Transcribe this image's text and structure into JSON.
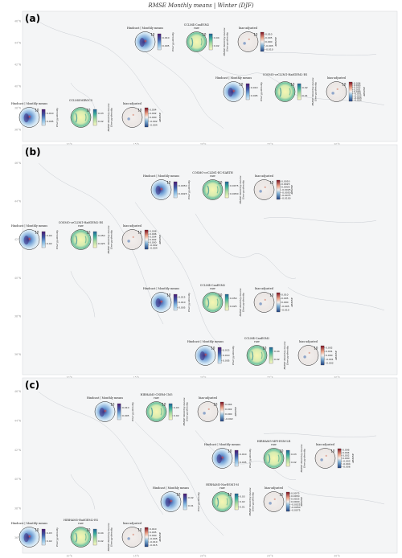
{
  "figure_title": "RMSE Monthly means | Winter (DJF)",
  "colors": {
    "map_bg": "#f4f5f6",
    "coast": "#c9cdd2",
    "frame": "#d9dcdf",
    "marker": "#e0453a"
  },
  "chart_data": {
    "type": "map",
    "panels": [
      {
        "label": "(a)",
        "lat_ticks": [
          "46°N",
          "44°N",
          "42°N",
          "40°N",
          "38°N",
          "36°N"
        ],
        "lon_ticks": [
          "10°E",
          "15°E",
          "20°E",
          "25°E",
          "30°E"
        ],
        "groups": [
          {
            "model": "CCLM4-CanESM2",
            "model_caption": "CCLM4-CanESM2",
            "raw_caption": "raw",
            "hindcast_caption": "Hindcast | Monthly means",
            "bias_caption": "bias-adjusted",
            "hindcast_ticks": [
              "0.010",
              "0.005"
            ],
            "raw_ticks": [
              "0.04",
              "0.02"
            ],
            "bias_ticks": [
              "0.010",
              "0.005",
              "0.000",
              "-0.005",
              "-0.010"
            ]
          },
          {
            "model": "COSMO-crCLIM1-HadGEM2-ES",
            "model_caption": "COSMO-crCLIM1-HadGEM2-ES",
            "raw_caption": "",
            "hindcast_caption": "Hindcast | Monthly means",
            "bias_caption": "bias-adjusted",
            "hindcast_ticks": [
              "0.010",
              "0.005"
            ],
            "raw_ticks": [
              "0.02",
              "0.01"
            ],
            "bias_ticks": [
              "0.004",
              "0.003",
              "0.002",
              "0.001",
              "0.000",
              "-0.001",
              "-0.002",
              "-0.003",
              "-0.004"
            ]
          },
          {
            "model": "CCLM4-MIROC5",
            "model_caption": "CCLM4-MIROC5",
            "raw_caption": "",
            "hindcast_caption": "Hindcast | Monthly means",
            "bias_caption": "bias-adjusted",
            "hindcast_ticks": [
              "0.010",
              "0.005"
            ],
            "raw_ticks": [
              "0.03",
              "0.02"
            ],
            "bias_ticks": [
              "0.004",
              "0.002",
              "0.000",
              "-0.002",
              "-0.004"
            ]
          }
        ]
      },
      {
        "label": "(b)",
        "lat_ticks": [
          "46°N",
          "44°N",
          "42°N",
          "40°N",
          "38°N",
          "36°N"
        ],
        "lon_ticks": [
          "10°E",
          "15°E",
          "20°E",
          "25°E",
          "30°E"
        ],
        "groups": [
          {
            "model": "COSMO-crCLIM1-EC-EARTH",
            "model_caption": "COSMO-crCLIM1-EC-EARTH",
            "raw_caption": "raw",
            "hindcast_caption": "Hindcast | Monthly means",
            "bias_caption": "bias-adjusted",
            "hindcast_ticks": [
              "0.0050",
              "0.0025"
            ],
            "raw_ticks": [
              "0.0075",
              "0.0050"
            ],
            "bias_ticks": [
              "0.0050",
              "0.0025",
              "0.0000",
              "-0.0025",
              "-0.0050",
              "-0.0075",
              "-0.0100"
            ]
          },
          {
            "model": "COSMO-crCLIM1-HadGEM2-ES",
            "model_caption": "COSMO-crCLIM1-HadGEM2-ES",
            "raw_caption": "raw",
            "hindcast_caption": "Hindcast | Monthly means",
            "bias_caption": "bias-adjusted",
            "hindcast_ticks": [
              "0.04",
              "0.02"
            ],
            "raw_ticks": [
              "0.050",
              "0.025"
            ],
            "bias_ticks": [
              "0.008",
              "0.006",
              "0.004",
              "0.002",
              "0.000",
              "-0.002",
              "-0.004"
            ]
          },
          {
            "model": "CCLM4-CanESM2",
            "model_caption": "CCLM4-CanESM2",
            "raw_caption": "raw",
            "hindcast_caption": "Hindcast | Monthly means",
            "bias_caption": "bias-adjusted",
            "hindcast_ticks": [
              "0.015",
              "0.010",
              "0.005"
            ],
            "raw_ticks": [
              "0.050",
              "0.025"
            ],
            "bias_ticks": [
              "0.010",
              "0.005",
              "0.000",
              "-0.005",
              "-0.010"
            ]
          },
          {
            "model": "CCLM4-CanESM2",
            "model_caption": "CCLM4-CanESM2",
            "raw_caption": "raw",
            "hindcast_caption": "Hindcast | Monthly means",
            "bias_caption": "bias-adjusted",
            "hindcast_ticks": [
              "0.015",
              "0.010",
              "0.005"
            ],
            "raw_ticks": [
              "0.04",
              "0.02"
            ],
            "bias_ticks": [
              "0.002",
              "0.001",
              "0.000",
              "-0.001",
              "-0.002"
            ]
          }
        ]
      },
      {
        "label": "(c)",
        "lat_ticks": [
          "46°N",
          "44°N",
          "42°N",
          "40°N",
          "38°N",
          "36°N"
        ],
        "lon_ticks": [
          "10°E",
          "15°E",
          "20°E",
          "25°E",
          "30°E"
        ],
        "groups": [
          {
            "model": "HIRHAM5-CNRM-CM5",
            "model_caption": "HIRHAM5-CNRM-CM5",
            "raw_caption": "raw",
            "hindcast_caption": "Hindcast | Monthly means",
            "bias_caption": "bias-adjusted",
            "hindcast_ticks": [
              "0.010",
              "0.005"
            ],
            "raw_ticks": [
              "0.03",
              "0.02"
            ],
            "bias_ticks": [
              "0.004",
              "0.002",
              "0.000",
              "-0.002"
            ]
          },
          {
            "model": "HIRHAM5-MPI-ESM-LR",
            "model_caption": "HIRHAM5-MPI-ESM-LR",
            "raw_caption": "raw",
            "hindcast_caption": "Hindcast | Monthly means",
            "bias_caption": "bias-adjusted",
            "hindcast_ticks": [
              "0.010",
              "0.005"
            ],
            "raw_ticks": [
              "0.03",
              "0.02"
            ],
            "bias_ticks": [
              "0.006",
              "0.004",
              "0.002",
              "0.000",
              "-0.002",
              "-0.004",
              "-0.006"
            ]
          },
          {
            "model": "HIRHAM5-NorESM1-M",
            "model_caption": "HIRHAM5-NorESM1-M",
            "raw_caption": "raw",
            "hindcast_caption": "Hindcast | Monthly means",
            "bias_caption": "bias-adjusted",
            "hindcast_ticks": [
              "0.02",
              "0.01"
            ],
            "raw_ticks": [
              "0.03",
              "0.02",
              "0.01"
            ],
            "bias_ticks": [
              "0.0075",
              "0.0050",
              "0.0025",
              "0.0000",
              "-0.0025",
              "-0.0050",
              "-0.0075"
            ]
          },
          {
            "model": "HIRHAM5-HadGEM2-ES",
            "model_caption": "HIRHAM5-HadGEM2-ES",
            "raw_caption": "raw",
            "hindcast_caption": "Hindcast | Monthly means",
            "bias_caption": "bias-adjusted",
            "hindcast_ticks": [
              "0.03",
              "0.02"
            ],
            "raw_ticks": [
              "0.04",
              "0.02"
            ],
            "bias_ticks": [
              "0.010",
              "0.005",
              "0.000",
              "-0.005",
              "-0.010",
              "-0.015"
            ]
          }
        ]
      }
    ],
    "ring_label": "10",
    "hindcast_colorbar_label": "Energy density",
    "raw_colorbar_label": "RMSE Monthly means Energy density",
    "bias_colorbar_label": "ΔRMSE"
  }
}
